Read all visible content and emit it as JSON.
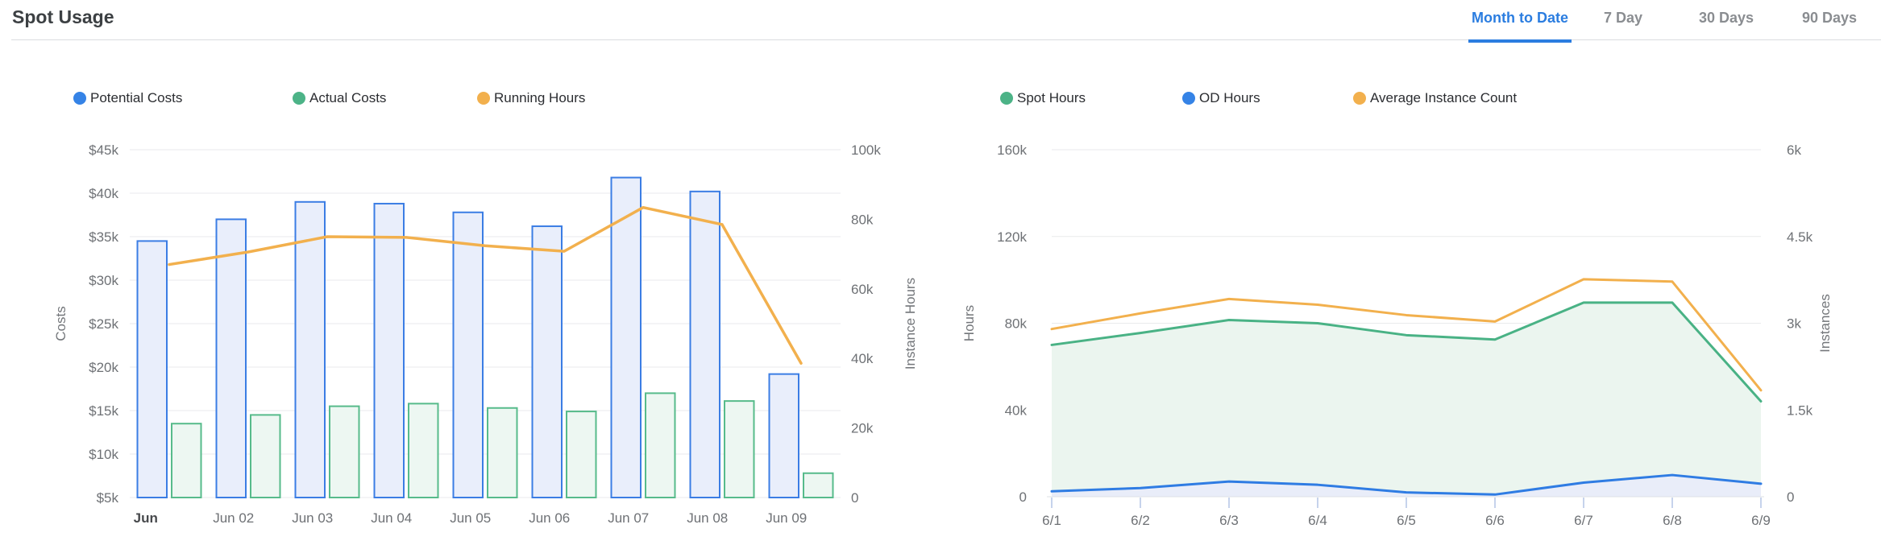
{
  "header": {
    "title": "Spot Usage"
  },
  "tabs": [
    {
      "label": "Month to Date",
      "active": true
    },
    {
      "label": "7 Day",
      "active": false
    },
    {
      "label": "30 Days",
      "active": false
    },
    {
      "label": "90 Days",
      "active": false
    }
  ],
  "colors": {
    "accent_blue": "#2b7de0",
    "tab_inactive": "#8a8d91",
    "title_text": "#3c4043",
    "legend_text": "#2b2d31",
    "axis_label": "#6e7175",
    "axis_name": "#73767a",
    "grid_line": "#e9eaec",
    "axis_line": "#dde0e6",
    "axis_tick": "#c6d3ec",
    "bar_blue_stroke": "#3b7de4",
    "bar_blue_fill": "#e9eefb",
    "bar_green_stroke": "#57bb8b",
    "bar_green_fill": "#edf7f2",
    "orange_line": "#f2b04d",
    "area_green_stroke": "#49b285",
    "area_green_fill": "#ebf5ef",
    "area_blue_stroke": "#2f7ce3",
    "area_blue_fill": "#e9edf9",
    "legend_dot_blue": "#3583e6",
    "legend_dot_green": "#4cb387",
    "legend_dot_orange": "#f2b04d",
    "x_label_first": "#47494c"
  },
  "chart_data": [
    {
      "type": "bar",
      "title": "Spot Usage - Costs vs Running Hours",
      "categories": [
        "Jun",
        "Jun 02",
        "Jun 03",
        "Jun 04",
        "Jun 05",
        "Jun 06",
        "Jun 07",
        "Jun 08",
        "Jun 09"
      ],
      "series": [
        {
          "name": "Potential Costs",
          "type": "bar",
          "axis": "left",
          "unit": "$k",
          "values": [
            34.5,
            37.0,
            39.0,
            38.8,
            37.8,
            36.2,
            41.8,
            40.2,
            19.2
          ]
        },
        {
          "name": "Actual Costs",
          "type": "bar",
          "axis": "left",
          "unit": "$k",
          "values": [
            13.5,
            14.5,
            15.5,
            15.8,
            15.3,
            14.9,
            17.0,
            16.1,
            7.8
          ]
        },
        {
          "name": "Running Hours",
          "type": "line",
          "axis": "right",
          "unit": "k hours",
          "values": [
            67.0,
            70.6,
            75.0,
            74.8,
            72.4,
            70.8,
            83.4,
            78.5,
            38.6
          ]
        }
      ],
      "y_left": {
        "name": "Costs",
        "min": 5,
        "max": 45,
        "labels": [
          "$5k",
          "$10k",
          "$15k",
          "$20k",
          "$25k",
          "$30k",
          "$35k",
          "$40k",
          "$45k"
        ]
      },
      "y_right": {
        "name": "Instance Hours",
        "min": 0,
        "max": 100,
        "labels": [
          "0",
          "20k",
          "40k",
          "60k",
          "80k",
          "100k"
        ]
      },
      "grid": true,
      "legend_position": "top"
    },
    {
      "type": "area",
      "title": "Spot Usage - Hours vs Instances",
      "categories": [
        "6/1",
        "6/2",
        "6/3",
        "6/4",
        "6/5",
        "6/6",
        "6/7",
        "6/8",
        "6/9"
      ],
      "series": [
        {
          "name": "Spot Hours",
          "type": "area",
          "axis": "left",
          "unit": "k hours",
          "values": [
            70.0,
            75.5,
            81.5,
            80.0,
            74.5,
            72.5,
            89.5,
            89.5,
            44.0
          ]
        },
        {
          "name": "OD Hours",
          "type": "area",
          "axis": "left",
          "unit": "k hours",
          "values": [
            2.5,
            4.0,
            7.0,
            5.5,
            2.0,
            1.0,
            6.5,
            10.0,
            6.0
          ]
        },
        {
          "name": "Average Instance Count",
          "type": "line",
          "axis": "right",
          "unit": "k instances",
          "values": [
            2.9,
            3.17,
            3.42,
            3.32,
            3.14,
            3.03,
            3.76,
            3.72,
            1.84
          ]
        }
      ],
      "y_left": {
        "name": "Hours",
        "min": 0,
        "max": 160,
        "labels": [
          "0",
          "40k",
          "80k",
          "120k",
          "160k"
        ]
      },
      "y_right": {
        "name": "Instances",
        "min": 0,
        "max": 6,
        "labels": [
          "0",
          "1.5k",
          "3k",
          "4.5k",
          "6k"
        ]
      },
      "grid": true,
      "legend_position": "top"
    }
  ]
}
